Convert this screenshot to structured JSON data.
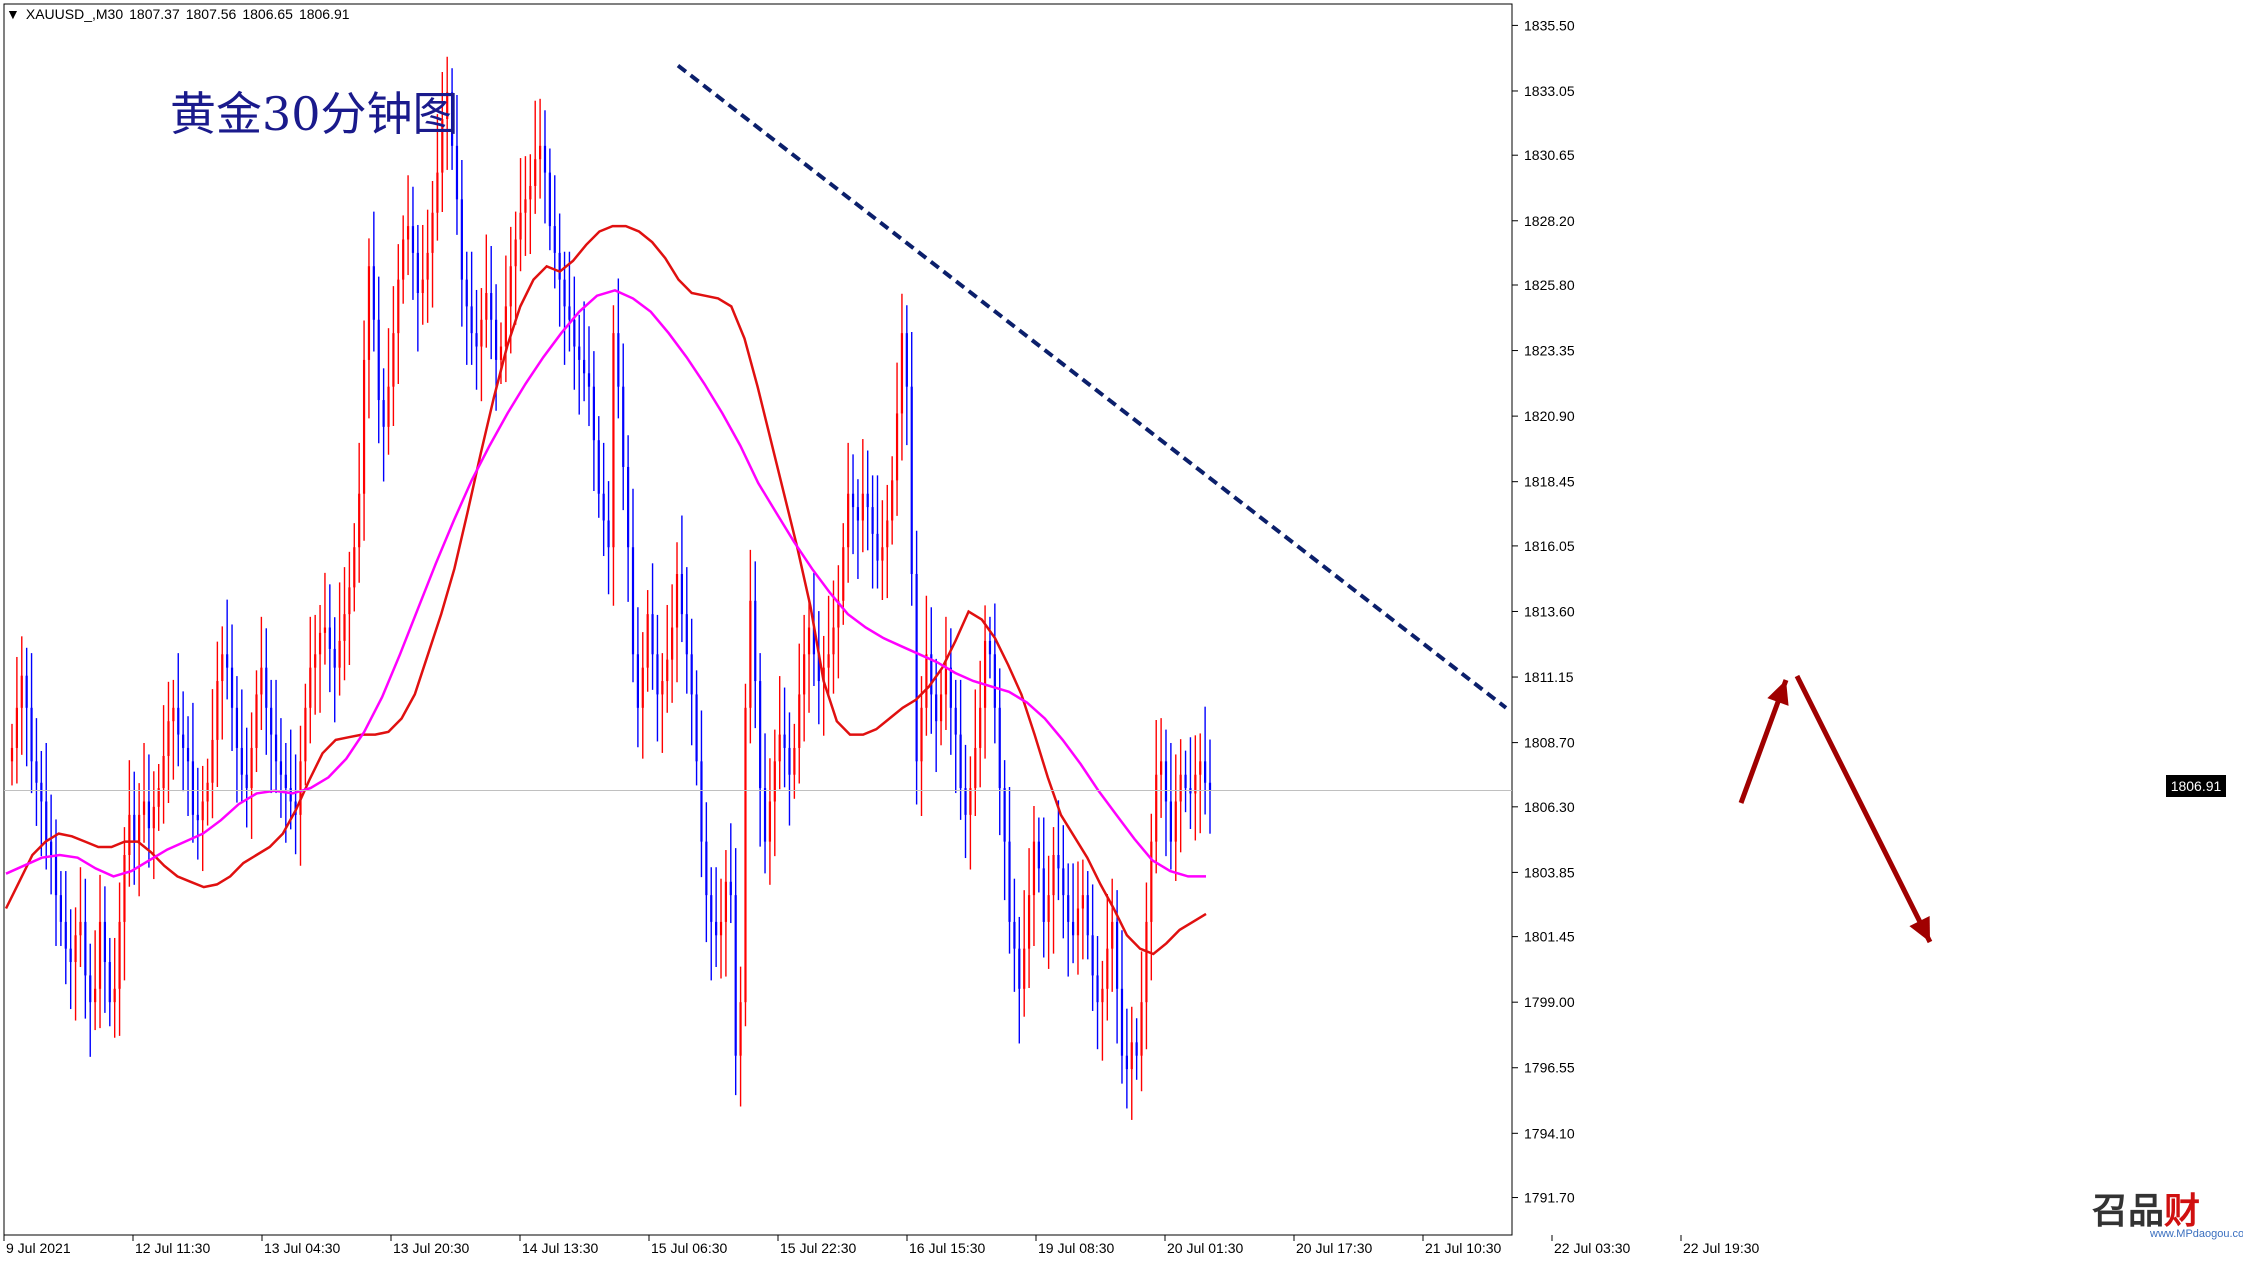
{
  "header": {
    "symbol": "XAUUSD_,M30",
    "ohlc": [
      "1807.37",
      "1807.56",
      "1806.65",
      "1806.91"
    ]
  },
  "title_overlay": "黄金30分钟图",
  "current_price_label": "1806.91",
  "watermark": {
    "brand": "召品",
    "brand2": "财",
    "url": "www.MPdaogou.com"
  },
  "colors": {
    "bull_candle": "#ff0000",
    "bear_candle": "#0000ff",
    "ma_fast": "#e01010",
    "ma_slow": "#ff00ff",
    "trendline": "#0b1f6b",
    "arrow": "#a00000",
    "axis": "#000000"
  },
  "chart_data": {
    "type": "candlestick",
    "symbol": "XAUUSD_",
    "timeframe": "M30",
    "y_ticks": [
      "1835.50",
      "1833.05",
      "1830.65",
      "1828.20",
      "1825.80",
      "1823.35",
      "1820.90",
      "1818.45",
      "1816.05",
      "1813.60",
      "1811.15",
      "1808.70",
      "1806.30",
      "1803.85",
      "1801.45",
      "1799.00",
      "1796.55",
      "1794.10",
      "1791.70"
    ],
    "ylim": [
      1790.3,
      1836.3
    ],
    "x_labels": [
      "9 Jul 2021",
      "12 Jul 11:30",
      "13 Jul 04:30",
      "13 Jul 20:30",
      "14 Jul 13:30",
      "15 Jul 06:30",
      "15 Jul 22:30",
      "16 Jul 15:30",
      "19 Jul 08:30",
      "20 Jul 01:30",
      "20 Jul 17:30",
      "21 Jul 10:30",
      "22 Jul 03:30",
      "22 Jul 19:30"
    ],
    "closes": [
      1808.5,
      1810.0,
      1811.2,
      1810.0,
      1808.0,
      1807.2,
      1806.5,
      1805.0,
      1804.5,
      1803.0,
      1802.0,
      1801.0,
      1800.5,
      1801.5,
      1802.0,
      1800.0,
      1799.0,
      1799.5,
      1802.0,
      1800.5,
      1799.0,
      1799.5,
      1802.0,
      1804.5,
      1806.0,
      1805.0,
      1806.0,
      1806.5,
      1805.5,
      1806.3,
      1807.0,
      1808.2,
      1809.5,
      1810.0,
      1809.0,
      1808.5,
      1808.0,
      1806.0,
      1805.8,
      1806.5,
      1807.2,
      1808.8,
      1811.0,
      1812.0,
      1811.5,
      1810.0,
      1808.5,
      1807.5,
      1807.0,
      1808.5,
      1810.5,
      1811.5,
      1810.0,
      1809.0,
      1808.0,
      1807.5,
      1807.0,
      1806.5,
      1806.0,
      1808.0,
      1810.0,
      1811.5,
      1812.0,
      1812.8,
      1813.0,
      1812.2,
      1811.5,
      1812.5,
      1813.5,
      1814.5,
      1816.0,
      1818.0,
      1823.0,
      1826.5,
      1824.5,
      1821.5,
      1820.5,
      1822.0,
      1824.0,
      1826.0,
      1827.5,
      1828.0,
      1827.0,
      1825.5,
      1826.0,
      1827.0,
      1828.5,
      1830.0,
      1832.0,
      1833.0,
      1831.0,
      1829.0,
      1826.0,
      1825.0,
      1824.0,
      1823.5,
      1824.5,
      1825.5,
      1824.5,
      1823.0,
      1823.5,
      1825.0,
      1826.5,
      1827.5,
      1828.5,
      1829.0,
      1829.5,
      1830.5,
      1831.0,
      1830.0,
      1828.0,
      1827.0,
      1826.0,
      1825.0,
      1824.5,
      1823.5,
      1823.0,
      1822.5,
      1822.0,
      1820.0,
      1818.0,
      1817.0,
      1816.0,
      1824.0,
      1822.0,
      1819.0,
      1816.0,
      1812.0,
      1810.0,
      1811.5,
      1813.5,
      1812.0,
      1810.5,
      1811.0,
      1811.8,
      1813.0,
      1815.0,
      1813.5,
      1812.0,
      1810.5,
      1808.0,
      1805.0,
      1803.0,
      1802.0,
      1801.5,
      1802.0,
      1803.5,
      1803.0,
      1797.0,
      1799.0,
      1810.0,
      1814.0,
      1811.0,
      1807.0,
      1805.0,
      1806.5,
      1808.0,
      1809.0,
      1808.5,
      1807.5,
      1808.5,
      1810.5,
      1812.0,
      1813.0,
      1812.0,
      1811.0,
      1811.5,
      1812.0,
      1813.0,
      1814.0,
      1816.0,
      1818.0,
      1817.5,
      1817.0,
      1818.0,
      1817.5,
      1816.5,
      1815.5,
      1816.0,
      1817.0,
      1818.5,
      1821.0,
      1824.0,
      1822.0,
      1815.0,
      1808.0,
      1810.0,
      1812.0,
      1810.5,
      1809.5,
      1810.5,
      1811.5,
      1810.0,
      1809.0,
      1807.0,
      1806.0,
      1807.0,
      1808.5,
      1810.0,
      1812.5,
      1812.0,
      1810.0,
      1807.0,
      1805.0,
      1802.0,
      1801.0,
      1799.5,
      1801.0,
      1803.0,
      1805.0,
      1804.0,
      1802.0,
      1803.0,
      1804.5,
      1804.0,
      1803.0,
      1802.0,
      1801.5,
      1802.5,
      1803.0,
      1801.5,
      1800.0,
      1799.0,
      1799.5,
      1801.0,
      1802.0,
      1799.5,
      1797.0,
      1796.5,
      1797.5,
      1797.0,
      1799.0,
      1802.0,
      1805.0,
      1807.5,
      1808.0,
      1806.5,
      1805.0,
      1806.5,
      1807.5,
      1807.0,
      1806.8,
      1807.5,
      1808.0,
      1807.2,
      1806.91
    ],
    "moving_averages": [
      {
        "color": "#e01010",
        "values": [
          1802.5,
          1803.5,
          1804.5,
          1805.0,
          1805.3,
          1805.2,
          1805.0,
          1804.8,
          1804.8,
          1805.0,
          1805.0,
          1804.6,
          1804.1,
          1803.7,
          1803.5,
          1803.3,
          1803.4,
          1803.7,
          1804.2,
          1804.5,
          1804.8,
          1805.3,
          1806.2,
          1807.3,
          1808.3,
          1808.8,
          1808.9,
          1809.0,
          1809.0,
          1809.1,
          1809.6,
          1810.5,
          1812.0,
          1813.5,
          1815.2,
          1817.3,
          1819.5,
          1821.6,
          1823.5,
          1825.0,
          1826.0,
          1826.5,
          1826.3,
          1826.7,
          1827.3,
          1827.8,
          1828.0,
          1828.0,
          1827.8,
          1827.4,
          1826.8,
          1826.0,
          1825.5,
          1825.4,
          1825.3,
          1825.0,
          1823.8,
          1822.0,
          1820.0,
          1818.0,
          1816.0,
          1813.8,
          1811.0,
          1809.5,
          1809.0,
          1809.0,
          1809.2,
          1809.6,
          1810.0,
          1810.3,
          1810.8,
          1811.5,
          1812.5,
          1813.6,
          1813.3,
          1812.6,
          1811.6,
          1810.5,
          1809.0,
          1807.4,
          1806.0,
          1805.2,
          1804.4,
          1803.4,
          1802.5,
          1801.5,
          1801.0,
          1800.8,
          1801.2,
          1801.7,
          1802.0,
          1802.3
        ]
      },
      {
        "color": "#ff00ff",
        "values": [
          1803.8,
          1804.1,
          1804.4,
          1804.5,
          1804.4,
          1804.0,
          1803.7,
          1803.9,
          1804.3,
          1804.7,
          1805.0,
          1805.3,
          1805.8,
          1806.4,
          1806.8,
          1806.9,
          1806.8,
          1807.0,
          1807.4,
          1808.1,
          1809.1,
          1810.4,
          1812.0,
          1813.7,
          1815.4,
          1817.0,
          1818.5,
          1819.8,
          1821.0,
          1822.1,
          1823.1,
          1824.0,
          1824.8,
          1825.4,
          1825.6,
          1825.3,
          1824.8,
          1824.0,
          1823.1,
          1822.1,
          1821.0,
          1819.8,
          1818.4,
          1817.3,
          1816.2,
          1815.2,
          1814.3,
          1813.5,
          1813.0,
          1812.6,
          1812.3,
          1812.0,
          1811.7,
          1811.3,
          1811.0,
          1810.8,
          1810.6,
          1810.2,
          1809.6,
          1808.8,
          1807.9,
          1806.9,
          1806.0,
          1805.1,
          1804.3,
          1803.9,
          1803.7,
          1803.7
        ]
      }
    ],
    "trendline": {
      "from": [
        "15 Jul 06:30",
        1834.0
      ],
      "to": [
        "after 22 Jul 19:30",
        1810.0
      ],
      "style": "dashed"
    },
    "annotations": [
      {
        "type": "arrow",
        "direction": "up"
      },
      {
        "type": "arrow",
        "direction": "down"
      }
    ],
    "grid": false
  }
}
